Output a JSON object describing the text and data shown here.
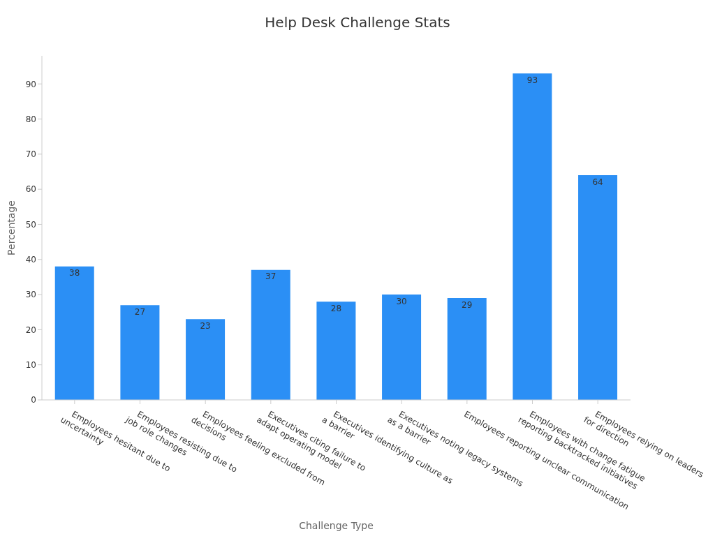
{
  "chart_data": {
    "type": "bar",
    "title": "Help Desk Challenge Stats",
    "xlabel": "Challenge Type",
    "ylabel": "Percentage",
    "categories": [
      "Employees hesitant due to\nuncertainty",
      "Employees resisting due to\njob role changes",
      "Employees feeling excluded from\ndecisions",
      "Executives citing failure to\nadapt operating model",
      "Executives identifying culture as\na barrier",
      "Executives noting legacy systems\nas a barrier",
      "Employees reporting unclear communication",
      "Employees with change fatigue\nreporting backtracked initiatives",
      "Employees relying on leaders\nfor direction"
    ],
    "values": [
      38,
      27,
      23,
      37,
      28,
      30,
      29,
      93,
      64
    ],
    "color": "#2b8ff5",
    "ylim": [
      0,
      98
    ],
    "yticks": [
      0,
      10,
      20,
      30,
      40,
      50,
      60,
      70,
      80,
      90
    ],
    "grid": false,
    "legend": false,
    "data_labels": true
  }
}
